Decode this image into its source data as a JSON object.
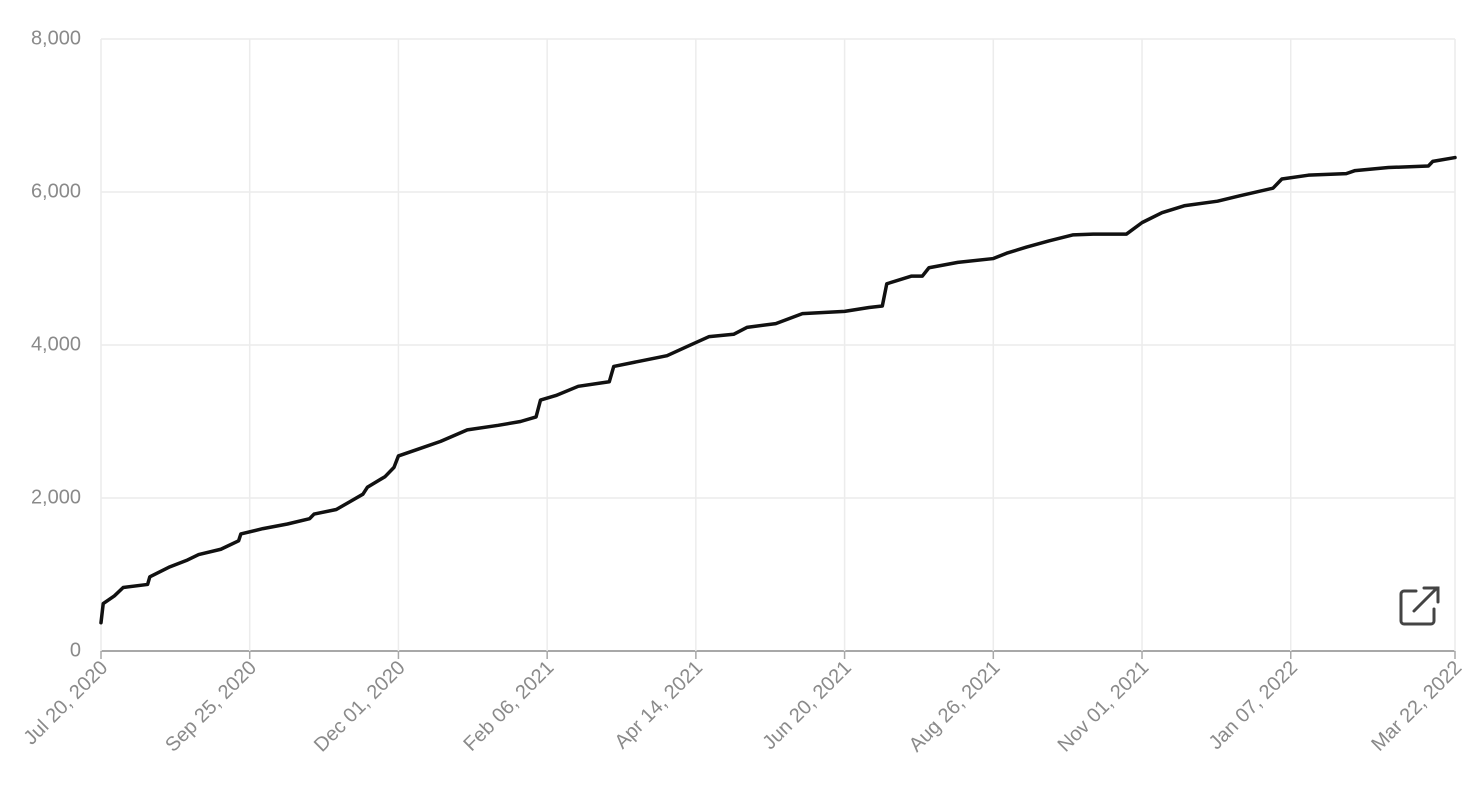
{
  "chart_data": {
    "type": "line",
    "x": [
      "2020-07-20",
      "2020-07-21",
      "2020-07-26",
      "2020-07-30",
      "2020-08-10",
      "2020-08-11",
      "2020-08-20",
      "2020-08-28",
      "2020-09-02",
      "2020-09-12",
      "2020-09-20",
      "2020-09-21",
      "2020-10-01",
      "2020-10-12",
      "2020-10-22",
      "2020-10-24",
      "2020-11-03",
      "2020-11-09",
      "2020-11-15",
      "2020-11-17",
      "2020-11-25",
      "2020-11-29",
      "2020-12-01",
      "2020-12-10",
      "2020-12-20",
      "2021-01-01",
      "2021-01-15",
      "2021-01-25",
      "2021-02-01",
      "2021-02-03",
      "2021-02-10",
      "2021-02-20",
      "2021-03-06",
      "2021-03-08",
      "2021-03-20",
      "2021-04-01",
      "2021-04-10",
      "2021-04-20",
      "2021-05-01",
      "2021-05-07",
      "2021-05-20",
      "2021-06-01",
      "2021-06-20",
      "2021-07-01",
      "2021-07-07",
      "2021-07-09",
      "2021-07-20",
      "2021-07-25",
      "2021-07-28",
      "2021-08-10",
      "2021-08-26",
      "2021-09-01",
      "2021-09-10",
      "2021-09-20",
      "2021-10-01",
      "2021-10-10",
      "2021-10-25",
      "2021-11-01",
      "2021-11-10",
      "2021-11-20",
      "2021-12-05",
      "2021-12-15",
      "2021-12-30",
      "2022-01-03",
      "2022-01-15",
      "2022-02-01",
      "2022-02-05",
      "2022-02-20",
      "2022-03-10",
      "2022-03-12",
      "2022-03-22"
    ],
    "series": [
      {
        "color": "#111111",
        "values": [
          370,
          620,
          720,
          830,
          870,
          970,
          1100,
          1190,
          1260,
          1330,
          1440,
          1530,
          1600,
          1660,
          1730,
          1790,
          1850,
          1950,
          2050,
          2140,
          2280,
          2400,
          2550,
          2640,
          2740,
          2890,
          2950,
          3000,
          3060,
          3280,
          3340,
          3460,
          3520,
          3720,
          3790,
          3860,
          3980,
          4110,
          4140,
          4230,
          4280,
          4410,
          4440,
          4490,
          4510,
          4800,
          4900,
          4900,
          5010,
          5080,
          5130,
          5200,
          5280,
          5360,
          5440,
          5450,
          5450,
          5600,
          5730,
          5820,
          5880,
          5950,
          6050,
          6170,
          6220,
          6240,
          6280,
          6320,
          6340,
          6400,
          6450
        ]
      }
    ],
    "xlim": [
      "2020-07-20",
      "2022-03-22"
    ],
    "xticks": [
      {
        "value": "2020-07-20",
        "label": "Jul 20, 2020"
      },
      {
        "value": "2020-09-25",
        "label": "Sep 25, 2020"
      },
      {
        "value": "2020-12-01",
        "label": "Dec 01, 2020"
      },
      {
        "value": "2021-02-06",
        "label": "Feb 06, 2021"
      },
      {
        "value": "2021-04-14",
        "label": "Apr 14, 2021"
      },
      {
        "value": "2021-06-20",
        "label": "Jun 20, 2021"
      },
      {
        "value": "2021-08-26",
        "label": "Aug 26, 2021"
      },
      {
        "value": "2021-11-01",
        "label": "Nov 01, 2021"
      },
      {
        "value": "2022-01-07",
        "label": "Jan 07, 2022"
      },
      {
        "value": "2022-03-22",
        "label": "Mar 22, 2022"
      }
    ],
    "ylim": [
      0,
      8000
    ],
    "yticks": [
      0,
      {
        "value": 2000,
        "label": "2,000"
      },
      {
        "value": 4000,
        "label": "4,000"
      },
      {
        "value": 6000,
        "label": "6,000"
      },
      {
        "value": 8000,
        "label": "8,000"
      }
    ],
    "grid": true
  }
}
